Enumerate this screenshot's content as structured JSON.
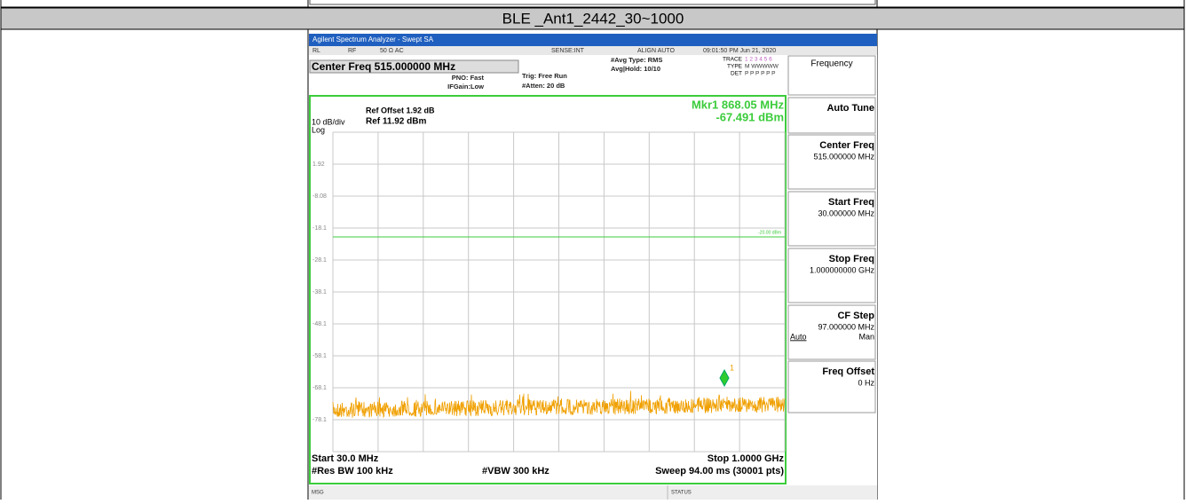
{
  "header": {
    "title": "BLE _Ant1_2442_30~1000"
  },
  "analyzer": {
    "window_title": "Agilent Spectrum Analyzer - Swept SA",
    "status_bar": [
      "RL",
      "RF",
      "50 Ω  AC",
      "SENSE:INT",
      "ALIGN AUTO",
      "09:01:50 PM Jun 21, 2020"
    ],
    "center_freq": "Center Freq 515.000000 MHz",
    "settings": [
      "PNO: Fast",
      "IFGain:Low",
      "Trig: Free Run",
      "#Atten: 20 dB",
      "#Avg Type: RMS",
      "Avg|Hold: 10/10"
    ],
    "trace_info": {
      "trace": "TRACE",
      "trace_nums": "1 2 3 4 5 6",
      "type": "TYPE",
      "type_val": "M WWWWW",
      "det": "DET",
      "det_val": "P P P P P P"
    },
    "ref_offset": "Ref Offset 1.92 dB",
    "scale": "10 dB/div",
    "ref_level": "Ref 11.92 dBm",
    "log": "Log",
    "marker_freq": "Mkr1 868.05 MHz",
    "marker_level": "-67.491 dBm",
    "marker_id": "1",
    "display_line": "-20.00 dBm",
    "y_labels": [
      "1.92",
      "-8.08",
      "-18.1",
      "-28.1",
      "-38.1",
      "-48.1",
      "-58.1",
      "-68.1",
      "-78.1"
    ],
    "start": "Start 30.0 MHz",
    "stop": "Stop 1.0000 GHz",
    "rbw": "#Res BW 100 kHz",
    "vbw": "#VBW 300 kHz",
    "sweep": "Sweep  94.00 ms (30001 pts)",
    "msg": "MSG",
    "status": "STATUS"
  },
  "softkeys": {
    "title": "Frequency",
    "keys": [
      {
        "label": "Auto Tune"
      },
      {
        "label": "Center Freq",
        "value": "515.000000 MHz"
      },
      {
        "label": "Start Freq",
        "value": "30.000000 MHz"
      },
      {
        "label": "Stop Freq",
        "value": "1.000000000 GHz"
      },
      {
        "label": "CF Step",
        "value": "97.000000 MHz",
        "options": [
          "Auto",
          "Man"
        ]
      },
      {
        "label": "Freq Offset",
        "value": "0 Hz"
      }
    ]
  }
}
